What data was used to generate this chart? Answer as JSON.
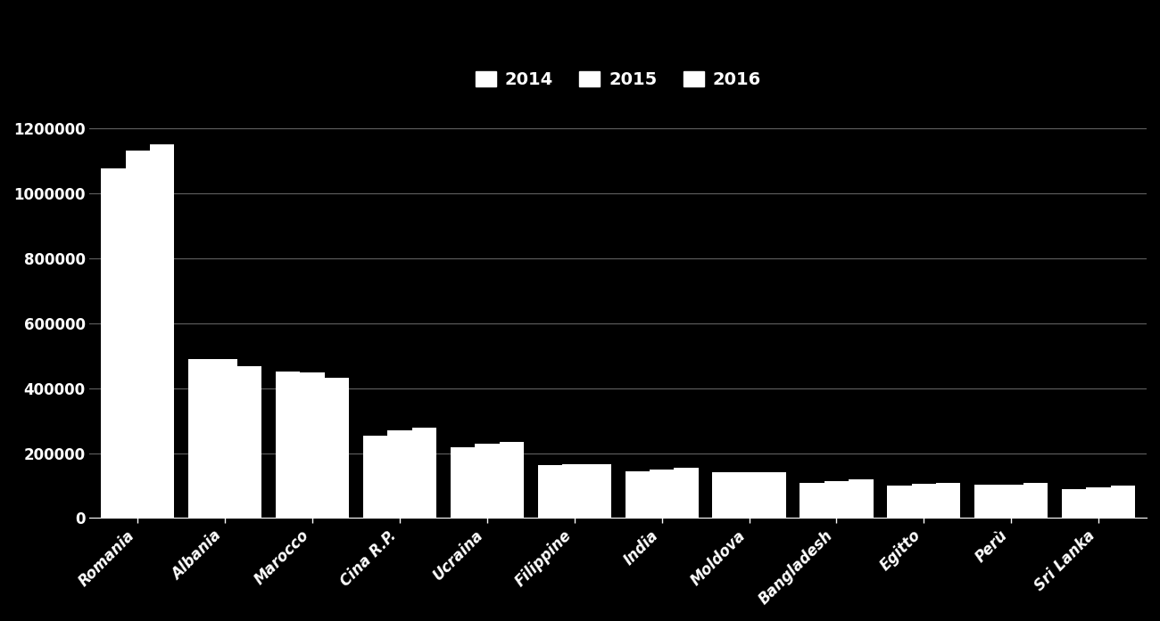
{
  "categories": [
    "Romania",
    "Albania",
    "Marocco",
    "Cina R.P.",
    "Ucraina",
    "Filippine",
    "India",
    "Moldova",
    "Bangladesh",
    "Egitto",
    "Perù",
    "Sri Lanka"
  ],
  "series": {
    "2014": [
      1078000,
      490000,
      452000,
      253000,
      218000,
      162000,
      145000,
      140000,
      107000,
      99000,
      102000,
      88000
    ],
    "2015": [
      1131000,
      490000,
      449000,
      271000,
      230000,
      165000,
      150000,
      142000,
      115000,
      105000,
      102000,
      95000
    ],
    "2016": [
      1151000,
      467000,
      432000,
      277000,
      234000,
      166000,
      155000,
      140000,
      120000,
      107000,
      108000,
      101000
    ]
  },
  "bar_colors": {
    "2014": "#ffffff",
    "2015": "#ffffff",
    "2016": "#ffffff"
  },
  "background_color": "#000000",
  "text_color": "#ffffff",
  "grid_color": "#606060",
  "ylim": [
    0,
    1300000
  ],
  "yticks": [
    0,
    200000,
    400000,
    600000,
    800000,
    1000000,
    1200000
  ],
  "legend_fontsize": 14,
  "tick_fontsize": 12,
  "bar_width": 0.28,
  "bar_gap": 0.01
}
